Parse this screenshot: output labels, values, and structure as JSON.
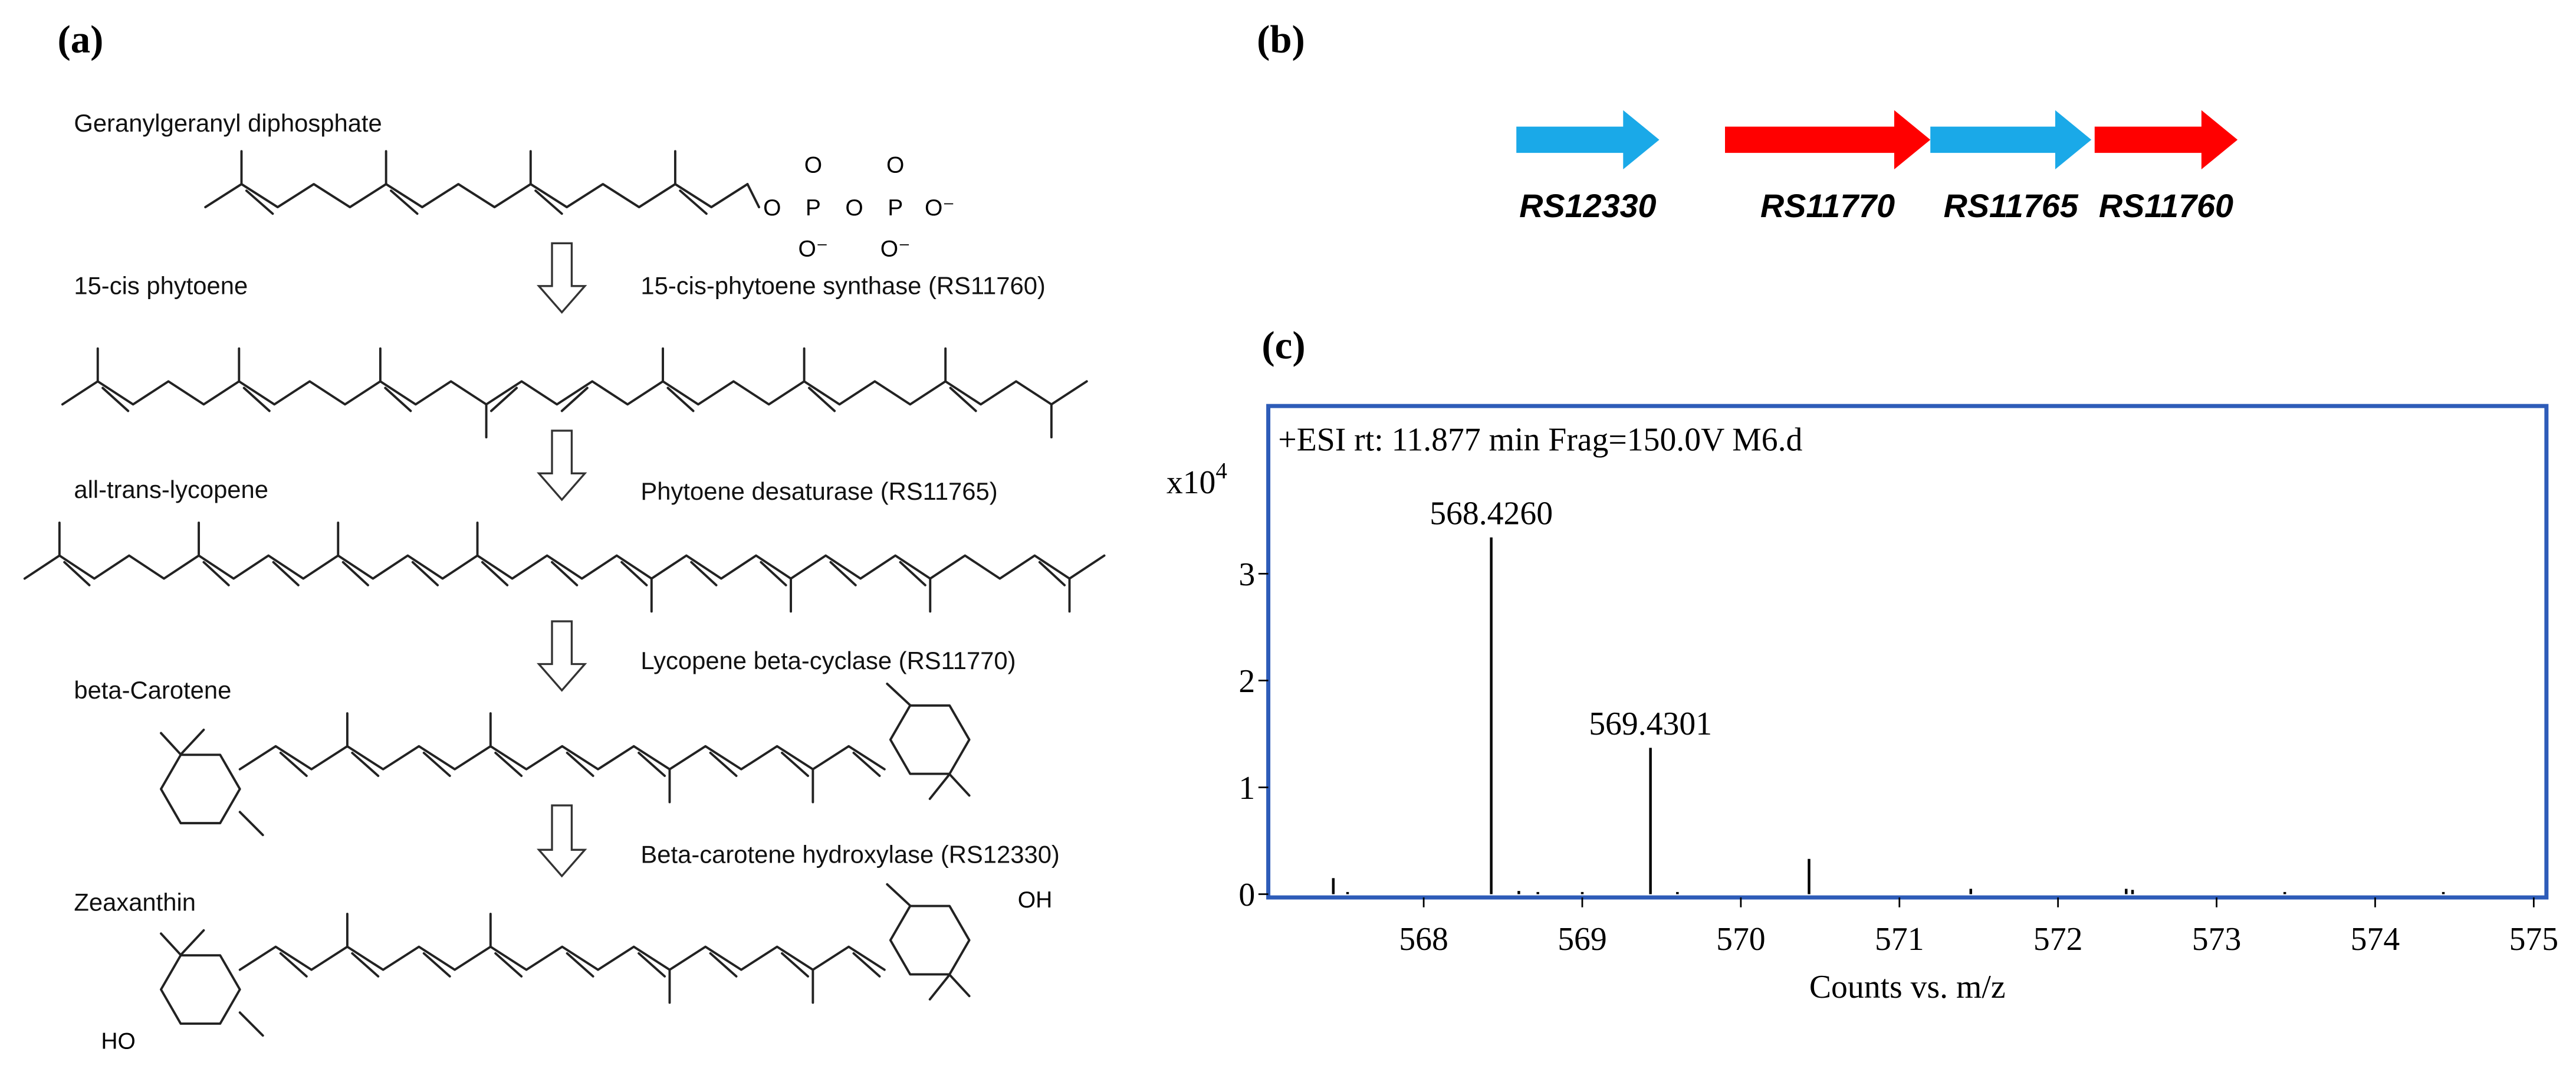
{
  "panel_a": {
    "label": "(a)",
    "compounds": [
      "Geranylgeranyl diphosphate",
      "15-cis phytoene",
      "all-trans-lycopene",
      "beta-Carotene",
      "Zeaxanthin"
    ],
    "enzymes": [
      "15-cis-phytoene synthase (RS11760)",
      "Phytoene desaturase (RS11765)",
      "Lycopene beta-cyclase (RS11770)",
      "Beta-carotene hydroxylase (RS12330)"
    ],
    "atom_labels": [
      "O",
      "P",
      "O",
      "P",
      "O⁻",
      "O",
      "O",
      "O⁻",
      "O⁻",
      "OH",
      "HO"
    ]
  },
  "panel_b": {
    "label": "(b)",
    "genes": [
      {
        "name": "RS12330",
        "color": "#1aa9e8"
      },
      {
        "name": "RS11770",
        "color": "#ff0000"
      },
      {
        "name": "RS11765",
        "color": "#1aa9e8"
      },
      {
        "name": "RS11760",
        "color": "#ff0000"
      }
    ]
  },
  "chart_data": {
    "type": "bar",
    "label": "(c)",
    "title": "+ESI rt: 11.877 min Frag=150.0V M6.d",
    "x_label": "Counts vs. m/z",
    "y_multiplier": {
      "base": "x10",
      "exponent": 4
    },
    "x": [
      567.43,
      567.52,
      {
        "value": 568.426,
        "label": "568.4260"
      },
      568.6,
      568.72,
      569.0,
      {
        "value": 569.4301,
        "label": "569.4301"
      },
      569.6,
      570.43,
      571.45,
      572.43,
      572.47,
      573.43,
      574.43
    ],
    "values": [
      0.15,
      0.02,
      3.34,
      0.03,
      0.02,
      0.02,
      1.37,
      0.02,
      0.33,
      0.05,
      0.05,
      0.04,
      0.02,
      0.02
    ],
    "color": "#000000",
    "frame_color": "#2e5cb8",
    "xlim": [
      567.02,
      575.08
    ],
    "xticks": [
      568,
      569,
      570,
      571,
      572,
      573,
      574,
      575
    ],
    "ylim": [
      0,
      4.57
    ],
    "yticks": [
      0,
      1,
      2,
      3
    ]
  }
}
